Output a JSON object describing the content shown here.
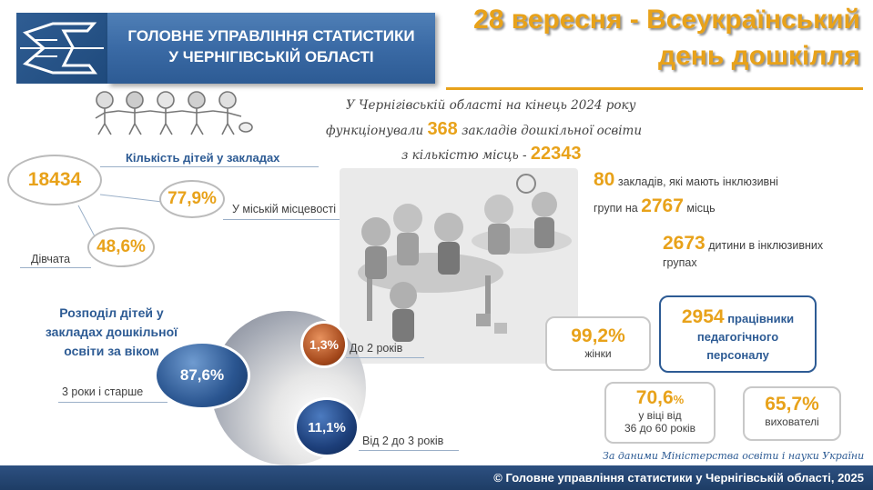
{
  "header": {
    "org_line1": "ГОЛОВНЕ УПРАВЛІННЯ СТАТИСТИКИ",
    "org_line2": "У ЧЕРНІГІВСЬКІЙ ОБЛАСТІ",
    "headline_line1": "28 вересня - Всеукраїнський",
    "headline_line2": "день дошкілля"
  },
  "intro": {
    "line1": "У Чернігівській області на кінець 2024 року",
    "line2_pre": "функціонували",
    "institutions": "368",
    "line2_post": "закладів дошкільної освіти",
    "line3_pre": "з кількістю місць -",
    "places": "22343"
  },
  "children": {
    "total": "18434",
    "total_label": "Кількість дітей у закладах",
    "urban_pct": "77,9%",
    "urban_label": "У міській місцевості",
    "girls_pct": "48,6%",
    "girls_label": "Дівчата"
  },
  "inclusive": {
    "institutions": "80",
    "institutions_text": "закладів, які мають інклюзивні",
    "groups_pre": "групи на",
    "places": "2767",
    "places_post": "місць",
    "children": "2673",
    "children_text1": "дитини в інклюзивних",
    "children_text2": "групах"
  },
  "age_distribution": {
    "title_line1": "Розподіл дітей у",
    "title_line2": "закладах дошкільної",
    "title_line3": "освіти за віком",
    "groups": [
      {
        "label": "3 роки і старше",
        "value": "87,6%"
      },
      {
        "label": "До 2 років",
        "value": "1,3%"
      },
      {
        "label": "Від 2 до 3 років",
        "value": "11,1%"
      }
    ]
  },
  "staff": {
    "count": "2954",
    "count_text1": "працівники",
    "count_text2": "педагогічного",
    "count_text3": "персоналу",
    "women_pct": "99,2%",
    "women_label": "жінки",
    "age_pct": "70,6",
    "age_pct_sign": "%",
    "age_label1": "у віці від",
    "age_label2": "36 до 60 років",
    "educators_pct": "65,7%",
    "educators_label": "вихователі"
  },
  "source": "За даними Міністерства освіти і науки України",
  "footer": "© Головне управління статистики у Чернігівській області, 2025",
  "colors": {
    "accent": "#e8a21a",
    "brand_blue": "#2d5b94"
  }
}
